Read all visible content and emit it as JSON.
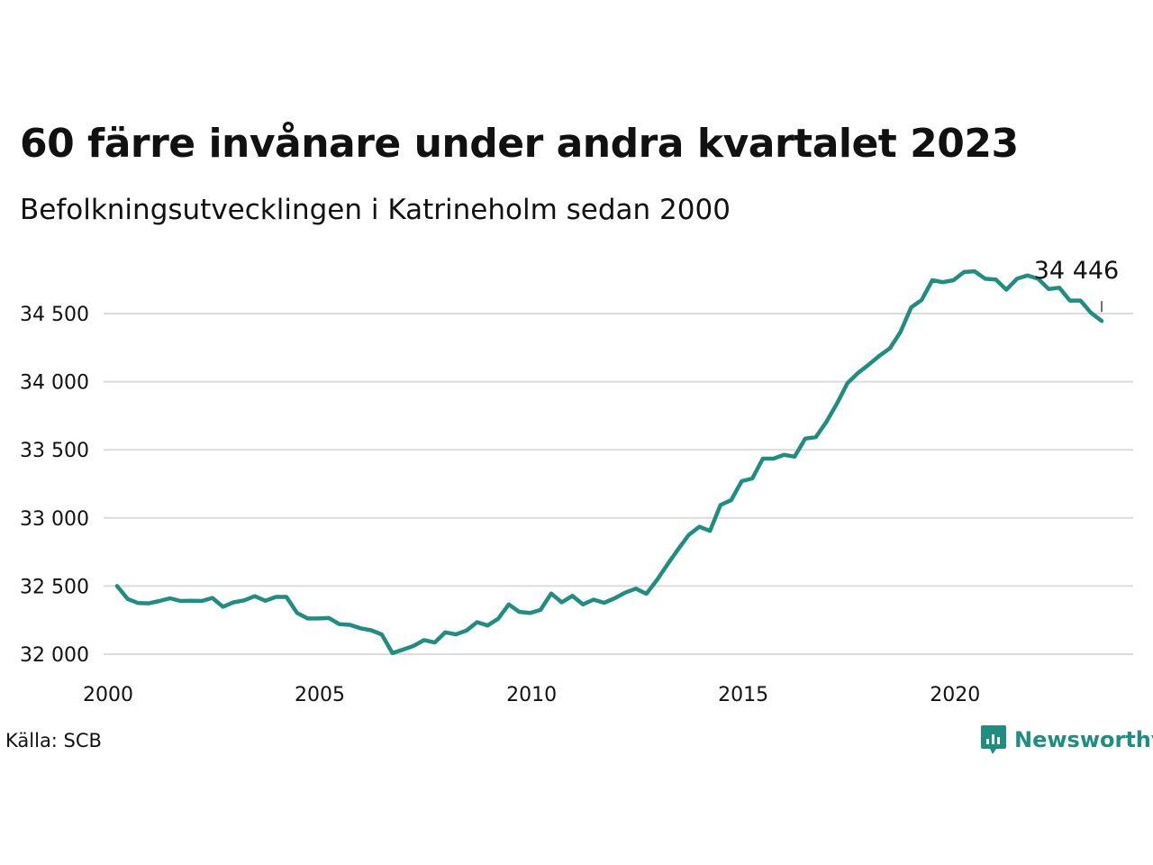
{
  "header": {
    "title": "60 färre invånare under andra kvartalet 2023",
    "subtitle": "Befolkningsutvecklingen i Katrineholm sedan 2000"
  },
  "footer": {
    "source": "Källa: SCB",
    "brand": "Newsworthy",
    "brand_icon": "bar-chart-speech-bubble-icon"
  },
  "colors": {
    "line": "#1f8e80",
    "grid": "#dcdcdc",
    "text": "#111111",
    "brand": "#1f8e80"
  },
  "chart_data": {
    "type": "line",
    "title": "60 färre invånare under andra kvartalet 2023",
    "subtitle": "Befolkningsutvecklingen i Katrineholm sedan 2000",
    "xlabel": "",
    "ylabel": "",
    "xlim": [
      2000,
      2024
    ],
    "ylim": [
      32000,
      34750
    ],
    "x_ticks": [
      2000,
      2005,
      2010,
      2015,
      2020
    ],
    "x_tick_labels": [
      "2000",
      "2005",
      "2010",
      "2015",
      "2020"
    ],
    "y_ticks": [
      32000,
      32500,
      33000,
      33500,
      34000,
      34500
    ],
    "y_tick_labels": [
      "32 000",
      "32 500",
      "33 000",
      "33 500",
      "34 000",
      "34 500"
    ],
    "grid": "horizontal",
    "annotation": {
      "x": 2023.25,
      "y": 34446,
      "label": "34 446"
    },
    "series": [
      {
        "x": [
          2000.0,
          2000.25,
          2000.5,
          2000.75,
          2001.0,
          2001.25,
          2001.5,
          2001.75,
          2002.0,
          2002.25,
          2002.5,
          2002.75,
          2003.0,
          2003.25,
          2003.5,
          2003.75,
          2004.0,
          2004.25,
          2004.5,
          2004.75,
          2005.0,
          2005.25,
          2005.5,
          2005.75,
          2006.0,
          2006.25,
          2006.5,
          2006.75,
          2007.0,
          2007.25,
          2007.5,
          2007.75,
          2008.0,
          2008.25,
          2008.5,
          2008.75,
          2009.0,
          2009.25,
          2009.5,
          2009.75,
          2010.0,
          2010.25,
          2010.5,
          2010.75,
          2011.0,
          2011.25,
          2011.5,
          2011.75,
          2012.0,
          2012.25,
          2012.5,
          2012.75,
          2013.0,
          2013.25,
          2013.5,
          2013.75,
          2014.0,
          2014.25,
          2014.5,
          2014.75,
          2015.0,
          2015.25,
          2015.5,
          2015.75,
          2016.0,
          2016.25,
          2016.5,
          2016.75,
          2017.0,
          2017.25,
          2017.5,
          2017.75,
          2018.0,
          2018.25,
          2018.5,
          2018.75,
          2019.0,
          2019.25,
          2019.5,
          2019.75,
          2020.0,
          2020.25,
          2020.5,
          2020.75,
          2021.0,
          2021.25,
          2021.5,
          2021.75,
          2022.0,
          2022.25,
          2022.5,
          2022.75,
          2023.0,
          2023.25
        ],
        "values": [
          32500,
          32405,
          32375,
          32373,
          32390,
          32410,
          32390,
          32392,
          32390,
          32413,
          32348,
          32380,
          32395,
          32425,
          32392,
          32420,
          32420,
          32302,
          32262,
          32262,
          32265,
          32220,
          32215,
          32190,
          32175,
          32145,
          32008,
          32033,
          32060,
          32103,
          32085,
          32160,
          32145,
          32173,
          32235,
          32210,
          32260,
          32365,
          32310,
          32302,
          32325,
          32445,
          32380,
          32428,
          32365,
          32400,
          32377,
          32410,
          32452,
          32481,
          32443,
          32545,
          32660,
          32770,
          32875,
          32935,
          32905,
          33095,
          33130,
          33270,
          33290,
          33435,
          33435,
          33463,
          33450,
          33582,
          33593,
          33705,
          33840,
          33990,
          34065,
          34125,
          34190,
          34245,
          34365,
          34545,
          34600,
          34745,
          34730,
          34745,
          34805,
          34810,
          34755,
          34750,
          34675,
          34755,
          34780,
          34755,
          34680,
          34690,
          34595,
          34595,
          34505,
          34446
        ]
      }
    ]
  }
}
